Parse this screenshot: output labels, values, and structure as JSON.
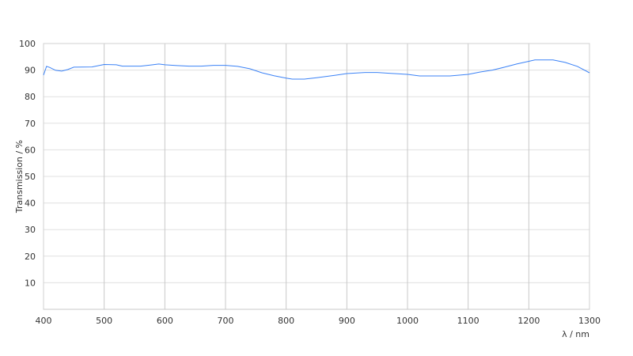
{
  "chart_data": {
    "type": "line",
    "title": "",
    "xlabel": "λ / nm",
    "ylabel": "Transmission / %",
    "xlim": [
      400,
      1300
    ],
    "ylim": [
      0,
      100
    ],
    "xticks": [
      400,
      500,
      600,
      700,
      800,
      900,
      1000,
      1100,
      1200,
      1300
    ],
    "yticks": [
      10,
      20,
      30,
      40,
      50,
      60,
      70,
      80,
      90,
      100
    ],
    "grid": true,
    "line_color": "#3b82f6",
    "series": [
      {
        "x": [
          400,
          405,
          410,
          420,
          430,
          440,
          450,
          480,
          500,
          520,
          530,
          560,
          580,
          590,
          600,
          620,
          640,
          660,
          680,
          700,
          720,
          740,
          760,
          780,
          800,
          810,
          830,
          850,
          880,
          900,
          930,
          950,
          970,
          1000,
          1020,
          1050,
          1070,
          1100,
          1120,
          1140,
          1160,
          1180,
          1200,
          1210,
          1240,
          1260,
          1280,
          1300
        ],
        "y": [
          88.1,
          91.4,
          91.0,
          89.9,
          89.6,
          90.2,
          91.1,
          91.2,
          92.1,
          92.0,
          91.5,
          91.5,
          92.0,
          92.3,
          92.0,
          91.7,
          91.5,
          91.5,
          91.8,
          91.8,
          91.4,
          90.5,
          89.0,
          87.9,
          87.0,
          86.6,
          86.6,
          87.1,
          88.0,
          88.7,
          89.1,
          89.1,
          88.8,
          88.4,
          87.8,
          87.8,
          87.8,
          88.4,
          89.3,
          90.0,
          91.1,
          92.3,
          93.3,
          93.8,
          93.8,
          92.9,
          91.4,
          89.0
        ]
      }
    ]
  }
}
